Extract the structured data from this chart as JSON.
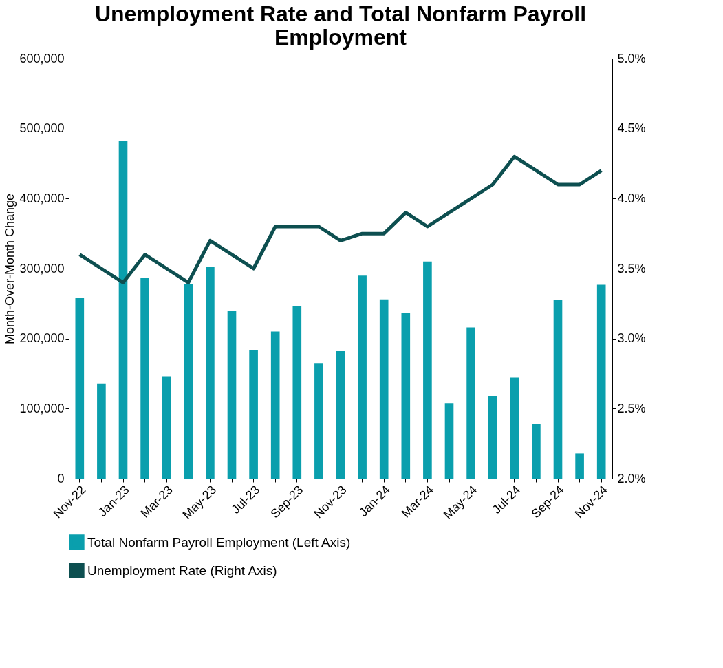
{
  "chart_data": {
    "type": "bar",
    "title": "Unemployment Rate and Total Nonfarm Payroll Employment",
    "ylabel": "Month-Over-Month Change",
    "categories": [
      "Nov-22",
      null,
      "Jan-23",
      null,
      "Mar-23",
      null,
      "May-23",
      null,
      "Jul-23",
      null,
      "Sep-23",
      null,
      "Nov-23",
      null,
      "Jan-24",
      null,
      "Mar-24",
      null,
      "May-24",
      null,
      "Jul-24",
      null,
      "Sep-24",
      null,
      "Nov-24"
    ],
    "series": [
      {
        "name": "Total Nonfarm Payroll Employment (Left Axis)",
        "color": "#0a9fad",
        "values": [
          258000,
          136000,
          482000,
          287000,
          146000,
          278000,
          303000,
          240000,
          184000,
          210000,
          246000,
          165000,
          182000,
          290000,
          256000,
          236000,
          310000,
          108000,
          216000,
          118000,
          144000,
          78000,
          255000,
          36000,
          277000
        ]
      },
      {
        "name": "Unemployment Rate (Right Axis)",
        "type": "line",
        "axis": "y2",
        "color": "#0d4f50",
        "values": [
          3.6,
          3.5,
          3.4,
          3.6,
          3.5,
          3.4,
          3.7,
          3.6,
          3.5,
          3.8,
          3.8,
          3.8,
          3.7,
          3.75,
          3.75,
          3.9,
          3.8,
          3.9,
          4.0,
          4.1,
          4.3,
          4.2,
          4.1,
          4.1,
          4.2
        ]
      }
    ],
    "ylim": [
      0,
      600000
    ],
    "yticks": [
      0,
      {
        "value": 100000,
        "label": "100,000"
      },
      {
        "value": 200000,
        "label": "200,000"
      },
      {
        "value": 300000,
        "label": "300,000"
      },
      {
        "value": 400000,
        "label": "400,000"
      },
      {
        "value": 500000,
        "label": "500,000"
      },
      {
        "value": 600000,
        "label": "600,000"
      }
    ],
    "y2lim": [
      2.0,
      5.0
    ],
    "y2ticks": [
      {
        "value": 2.0,
        "label": "2.0%"
      },
      {
        "value": 2.5,
        "label": "2.5%"
      },
      {
        "value": 3.0,
        "label": "3.0%"
      },
      {
        "value": 3.5,
        "label": "3.5%"
      },
      {
        "value": 4.0,
        "label": "4.0%"
      },
      {
        "value": 4.5,
        "label": "4.5%"
      },
      {
        "value": 5.0,
        "label": "5.0%"
      }
    ],
    "legend": "bottom",
    "grid": false
  }
}
